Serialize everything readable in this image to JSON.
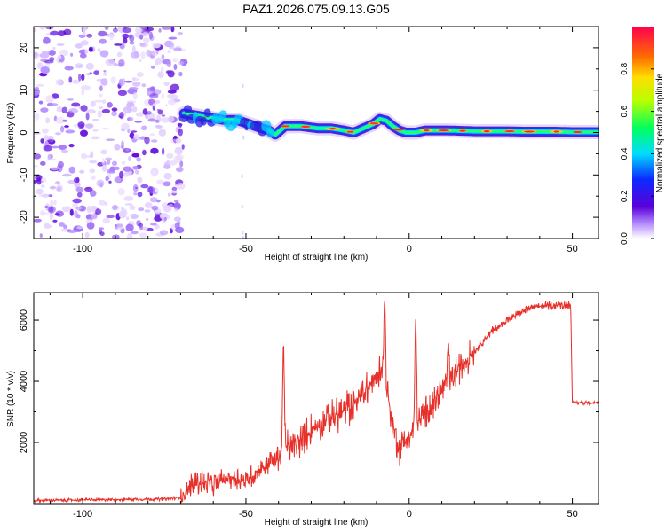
{
  "title": "PAZ1.2026.075.09.13.G05",
  "chart_data": [
    {
      "type": "heatmap",
      "xlabel": "Height of straight line (km)",
      "ylabel": "Frequency (Hz)",
      "xlim": [
        -115,
        58
      ],
      "ylim": [
        -25,
        25
      ],
      "x_ticks": [
        -100,
        -50,
        0,
        50
      ],
      "y_ticks": [
        -20,
        -10,
        0,
        10,
        20
      ],
      "ridge": {
        "x": [
          -69,
          -65,
          -61,
          -57,
          -53,
          -49,
          -46,
          -43,
          -41,
          -38,
          -33,
          -28,
          -24,
          -20,
          -17,
          -14,
          -11,
          -9,
          -7,
          -5,
          -3,
          -1,
          2,
          5,
          8,
          12,
          16,
          20,
          25,
          30,
          35,
          40,
          45,
          50,
          55,
          58
        ],
        "frequency": [
          4.5,
          4.0,
          3.5,
          3.0,
          3.0,
          2.0,
          1.2,
          0.5,
          -0.5,
          1.5,
          1.5,
          1.0,
          1.0,
          0.5,
          0.0,
          1.0,
          2.0,
          3.2,
          2.8,
          1.5,
          0.5,
          0.0,
          0.0,
          0.5,
          0.5,
          0.5,
          0.4,
          0.3,
          0.3,
          0.3,
          0.2,
          0.2,
          0.2,
          0.1,
          0.1,
          0.1
        ]
      },
      "noise_region_end_x": -69
    },
    {
      "type": "colorbar",
      "label": "Normalized spectral amplitude",
      "range": [
        0.0,
        1.0
      ],
      "ticks": [
        "0.0",
        "0.2",
        "0.4",
        "0.6",
        "0.8"
      ]
    },
    {
      "type": "line",
      "series_name": "SNR",
      "xlabel": "Height of straight line (km)",
      "ylabel": "SNR (10 * v/v)",
      "xlim": [
        -115,
        58
      ],
      "ylim": [
        0,
        6900
      ],
      "x_ticks": [
        -100,
        -50,
        0,
        50
      ],
      "y_ticks": [
        2000,
        4000,
        6000
      ],
      "color": "#e8302a",
      "x": [
        -115,
        -100,
        -85,
        -75,
        -70,
        -65,
        -60,
        -55,
        -50,
        -45,
        -40,
        -38,
        -35,
        -30,
        -25,
        -20,
        -15,
        -10,
        -8,
        -5,
        -3,
        0,
        5,
        10,
        15,
        20,
        25,
        30,
        35,
        40,
        45,
        49.5,
        50,
        55,
        58
      ],
      "y": [
        100,
        120,
        140,
        150,
        200,
        700,
        600,
        900,
        700,
        1200,
        1500,
        1800,
        1900,
        2400,
        2800,
        3000,
        3500,
        4100,
        4600,
        2500,
        1800,
        2200,
        3000,
        3700,
        4400,
        5000,
        5600,
        6000,
        6300,
        6450,
        6500,
        6500,
        3300,
        3300,
        3300
      ],
      "spikes": [
        {
          "x": -38.5,
          "y": 5300
        },
        {
          "x": -7.5,
          "y": 6700
        },
        {
          "x": 2,
          "y": 6100
        },
        {
          "x": 12,
          "y": 5300
        }
      ]
    }
  ],
  "colors": {
    "snr_line": "#e8302a",
    "axis": "#000000",
    "background": "#ffffff"
  }
}
